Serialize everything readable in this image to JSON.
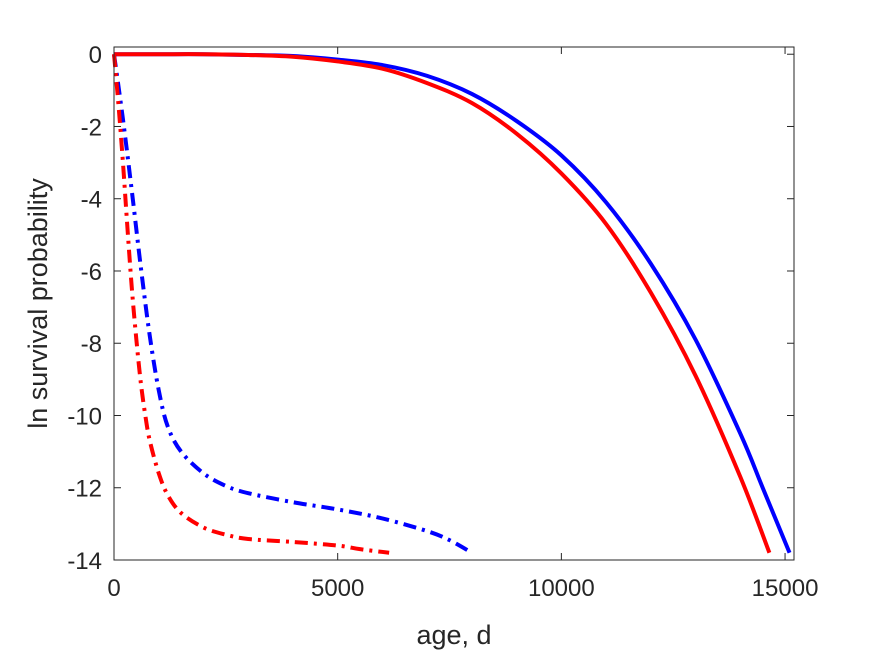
{
  "chart_data": {
    "type": "line",
    "title": "",
    "xlabel": "age, d",
    "ylabel": "ln survival probability",
    "xlim": [
      0,
      15200
    ],
    "ylim": [
      -14,
      0.2
    ],
    "xticks": [
      0,
      5000,
      10000,
      15000
    ],
    "xtick_labels": [
      "0",
      "5000",
      "10000",
      "15000"
    ],
    "yticks": [
      0,
      -2,
      -4,
      -6,
      -8,
      -10,
      -12,
      -14
    ],
    "ytick_labels": [
      "0",
      "-2",
      "-4",
      "-6",
      "-8",
      "-10",
      "-12",
      "-14"
    ],
    "grid": false,
    "legend": "none",
    "box": true,
    "series": [
      {
        "color": "#0000ff",
        "style": "solid",
        "x": [
          0,
          1000,
          2000,
          3000,
          4000,
          5000,
          6000,
          7000,
          8000,
          9000,
          10000,
          11000,
          12000,
          13000,
          14000,
          14500,
          15100
        ],
        "y": [
          0,
          0,
          0,
          -0.02,
          -0.05,
          -0.15,
          -0.3,
          -0.6,
          -1.1,
          -1.85,
          -2.8,
          -4.1,
          -5.8,
          -7.9,
          -10.5,
          -12.0,
          -13.8
        ]
      },
      {
        "color": "#ff0000",
        "style": "solid",
        "x": [
          0,
          1000,
          2000,
          3000,
          4000,
          5000,
          6000,
          7000,
          8000,
          9000,
          10000,
          11000,
          12000,
          13000,
          14000,
          14650
        ],
        "y": [
          0,
          0,
          0,
          -0.02,
          -0.07,
          -0.2,
          -0.4,
          -0.8,
          -1.35,
          -2.2,
          -3.3,
          -4.7,
          -6.6,
          -8.9,
          -11.7,
          -13.8
        ]
      },
      {
        "color": "#0000ff",
        "style": "dashdot",
        "x": [
          0,
          200,
          400,
          600,
          800,
          1000,
          1200,
          1500,
          2000,
          2500,
          3000,
          4000,
          5000,
          6000,
          7000,
          7500,
          8000
        ],
        "y": [
          0,
          -1.8,
          -3.8,
          -5.9,
          -7.8,
          -9.3,
          -10.3,
          -11.0,
          -11.6,
          -11.95,
          -12.15,
          -12.4,
          -12.6,
          -12.85,
          -13.2,
          -13.45,
          -13.8
        ]
      },
      {
        "color": "#ff0000",
        "style": "dashdot",
        "x": [
          0,
          100,
          200,
          300,
          400,
          500,
          600,
          700,
          800,
          1000,
          1200,
          1500,
          2000,
          2500,
          3000,
          4000,
          5000,
          5500,
          6150
        ],
        "y": [
          0,
          -1.4,
          -3.0,
          -4.8,
          -6.5,
          -7.9,
          -9.1,
          -10.0,
          -10.7,
          -11.6,
          -12.2,
          -12.7,
          -13.1,
          -13.3,
          -13.42,
          -13.5,
          -13.6,
          -13.7,
          -13.8
        ]
      }
    ]
  }
}
